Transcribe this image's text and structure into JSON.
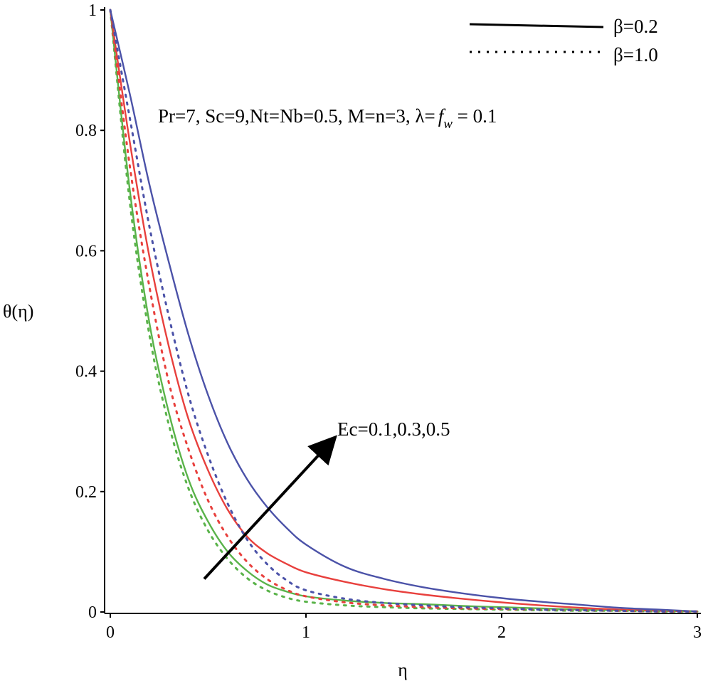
{
  "chart_data": {
    "type": "line",
    "title": "",
    "xlabel": "η",
    "ylabel": "θ(η)",
    "xlim": [
      0,
      3
    ],
    "ylim": [
      0,
      1
    ],
    "x_ticks": [
      0,
      1,
      2,
      3
    ],
    "x_tick_labels": [
      "0",
      "1",
      "2",
      "3"
    ],
    "y_ticks": [
      0,
      0.2,
      0.4,
      0.6,
      0.8,
      1
    ],
    "y_tick_labels": [
      "0",
      "0.2",
      "0.4",
      "0.6",
      "0.8",
      "1"
    ],
    "grid": false,
    "legend": {
      "position": "top-right",
      "entries": [
        {
          "label": "β=0.2",
          "style": "solid"
        },
        {
          "label": "β=1.0",
          "style": "dotted"
        }
      ]
    },
    "annotations": {
      "parameters": "Pr=7, Sc=9,Nt=Nb=0.5, M=n=3, λ=",
      "fw_symbol": "f",
      "fw_subscript": "w",
      "fw_value": " = 0.1",
      "arrow_label": "Ec=0.1,0.3,0.5",
      "arrow_from": {
        "x": 0.48,
        "y": 0.055
      },
      "arrow_to": {
        "x": 1.14,
        "y": 0.287
      }
    },
    "colors": {
      "Ec=0.1": "#5ab34a",
      "Ec=0.3": "#e8403d",
      "Ec=0.5": "#4b52a8"
    },
    "x": [
      0,
      0.1,
      0.2,
      0.3,
      0.4,
      0.5,
      0.6,
      0.7,
      0.8,
      0.9,
      1.0,
      1.2,
      1.4,
      1.6,
      1.8,
      2.0,
      2.2,
      2.4,
      2.6,
      2.8,
      3.0
    ],
    "series": [
      {
        "name": "Ec=0.1, β=0.2",
        "ec": "0.1",
        "style": "solid",
        "color": "#5ab34a",
        "values": [
          1.0,
          0.7,
          0.48,
          0.33,
          0.22,
          0.15,
          0.1,
          0.068,
          0.046,
          0.034,
          0.026,
          0.019,
          0.015,
          0.013,
          0.01,
          0.008,
          0.006,
          0.004,
          0.003,
          0.002,
          0.001
        ]
      },
      {
        "name": "Ec=0.3, β=0.2",
        "ec": "0.3",
        "style": "solid",
        "color": "#e8403d",
        "values": [
          1.0,
          0.78,
          0.59,
          0.44,
          0.32,
          0.235,
          0.17,
          0.125,
          0.098,
          0.08,
          0.066,
          0.05,
          0.038,
          0.029,
          0.022,
          0.016,
          0.011,
          0.007,
          0.004,
          0.002,
          0.001
        ]
      },
      {
        "name": "Ec=0.5, β=0.2",
        "ec": "0.5",
        "style": "solid",
        "color": "#4b52a8",
        "values": [
          1.0,
          0.86,
          0.71,
          0.58,
          0.46,
          0.36,
          0.28,
          0.22,
          0.175,
          0.14,
          0.112,
          0.075,
          0.055,
          0.041,
          0.031,
          0.023,
          0.017,
          0.012,
          0.007,
          0.004,
          0.001
        ]
      },
      {
        "name": "Ec=0.1, β=1.0",
        "ec": "0.1",
        "style": "dotted",
        "color": "#5ab34a",
        "values": [
          1.0,
          0.68,
          0.46,
          0.31,
          0.205,
          0.135,
          0.088,
          0.056,
          0.036,
          0.024,
          0.017,
          0.011,
          0.008,
          0.006,
          0.005,
          0.004,
          0.003,
          0.002,
          0.002,
          0.001,
          0.001
        ]
      },
      {
        "name": "Ec=0.3, β=1.0",
        "ec": "0.3",
        "style": "dotted",
        "color": "#e8403d",
        "values": [
          1.0,
          0.74,
          0.54,
          0.38,
          0.27,
          0.185,
          0.125,
          0.083,
          0.055,
          0.037,
          0.026,
          0.016,
          0.011,
          0.008,
          0.006,
          0.005,
          0.004,
          0.003,
          0.002,
          0.001,
          0.001
        ]
      },
      {
        "name": "Ec=0.5, β=1.0",
        "ec": "0.5",
        "style": "dotted",
        "color": "#4b52a8",
        "values": [
          1.0,
          0.82,
          0.64,
          0.49,
          0.36,
          0.26,
          0.18,
          0.12,
          0.08,
          0.053,
          0.036,
          0.022,
          0.015,
          0.011,
          0.008,
          0.006,
          0.004,
          0.003,
          0.002,
          0.001,
          0.001
        ]
      }
    ]
  }
}
